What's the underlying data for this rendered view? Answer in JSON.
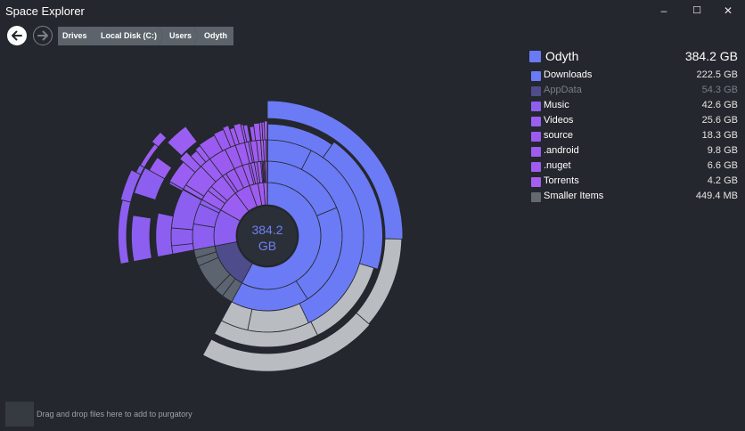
{
  "window": {
    "title": "Space Explorer",
    "minimize": "–",
    "maximize": "☐",
    "close": "✕"
  },
  "nav": {
    "back_icon": "arrow-left-icon",
    "forward_icon": "arrow-right-icon"
  },
  "breadcrumb": [
    "Drives",
    "Local Disk (C:)",
    "Users",
    "Odyth"
  ],
  "center": {
    "value": "384.2",
    "unit": "GB"
  },
  "legend": {
    "root": {
      "name": "Odyth",
      "size": "384.2 GB",
      "color": "#6a79f5"
    },
    "items": [
      {
        "name": "Downloads",
        "size": "222.5 GB",
        "color": "#6b7bf6",
        "dim": false
      },
      {
        "name": "AppData",
        "size": "54.3 GB",
        "color": "#4f4c8c",
        "dim": true
      },
      {
        "name": "Music",
        "size": "42.6 GB",
        "color": "#8c5ff0",
        "dim": false
      },
      {
        "name": "Videos",
        "size": "25.6 GB",
        "color": "#9a5ff2",
        "dim": false
      },
      {
        "name": "source",
        "size": "18.3 GB",
        "color": "#9b5bf0",
        "dim": false
      },
      {
        "name": ".android",
        "size": "9.8 GB",
        "color": "#9e5cf0",
        "dim": false
      },
      {
        "name": ".nuget",
        "size": "6.6 GB",
        "color": "#a05cf0",
        "dim": false
      },
      {
        "name": "Torrents",
        "size": "4.2 GB",
        "color": "#a45ef0",
        "dim": false
      },
      {
        "name": "Smaller Items",
        "size": "449.4 MB",
        "color": "#636a6e",
        "dim": false
      }
    ]
  },
  "sunburst_fractions": [
    0.579,
    0.141,
    0.111,
    0.067,
    0.048,
    0.026,
    0.017,
    0.011,
    0.001
  ],
  "purgatory": {
    "hint": "Drag and drop files here to add to purgatory"
  }
}
